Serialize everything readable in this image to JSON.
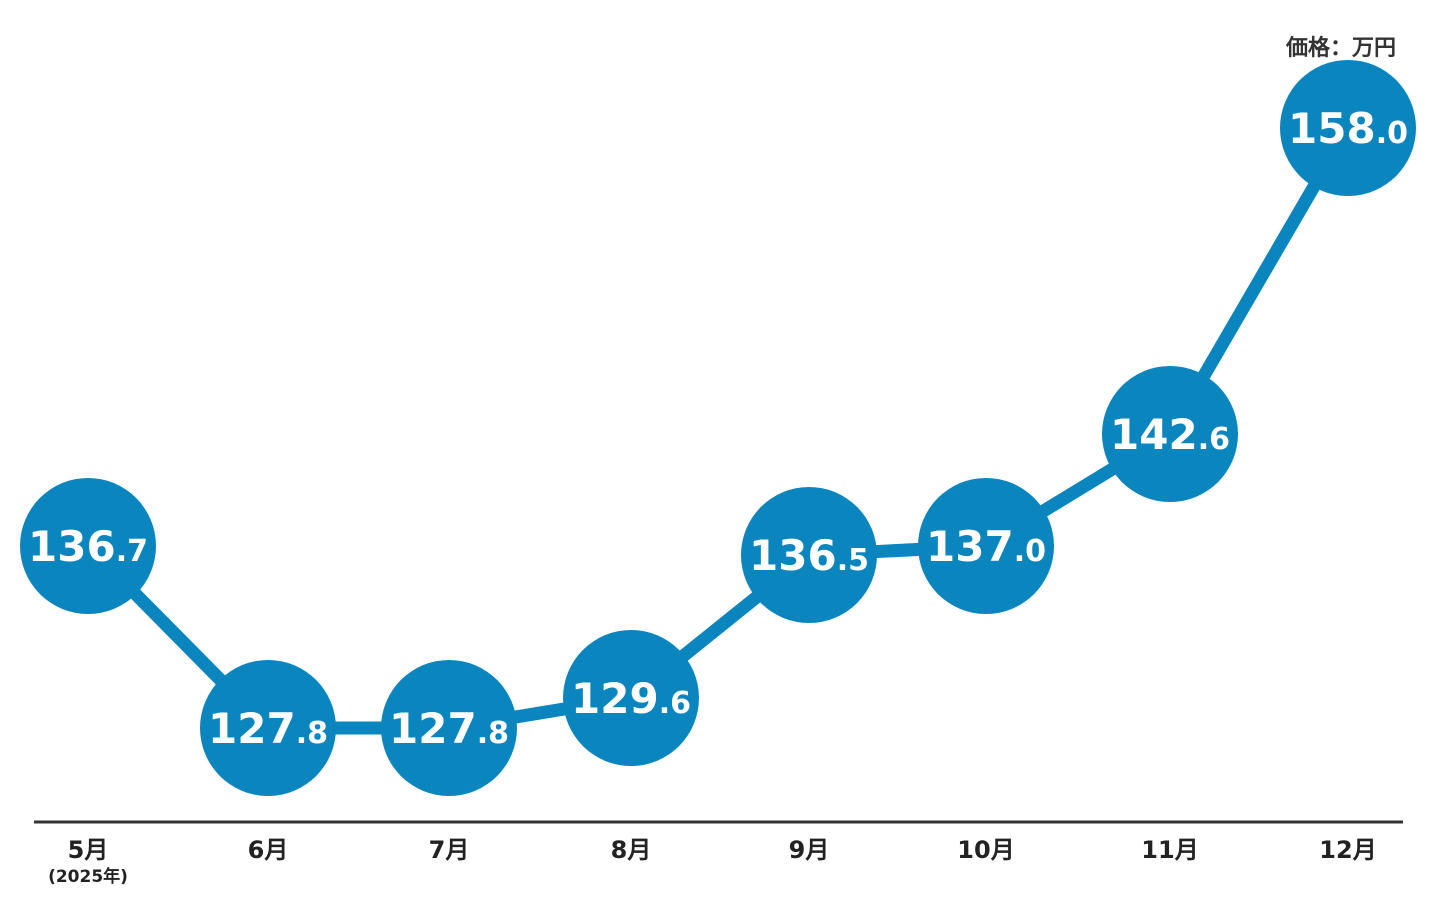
{
  "chart_data": {
    "type": "line",
    "unit_label": "価格：万円",
    "categories": [
      "5月",
      "6月",
      "7月",
      "8月",
      "9月",
      "10月",
      "11月",
      "12月"
    ],
    "first_category_note": "(2025年)",
    "values": [
      136.7,
      127.8,
      127.8,
      129.6,
      136.5,
      137.0,
      142.6,
      158.0
    ],
    "value_labels": [
      {
        "int": "136",
        "dec": ".7"
      },
      {
        "int": "127",
        "dec": ".8"
      },
      {
        "int": "127",
        "dec": ".8"
      },
      {
        "int": "129",
        "dec": ".6"
      },
      {
        "int": "136",
        "dec": ".5"
      },
      {
        "int": "137",
        "dec": ".0"
      },
      {
        "int": "142",
        "dec": ".6"
      },
      {
        "int": "158",
        "dec": ".0"
      }
    ],
    "grid": false,
    "legend": "none",
    "colors": {
      "series": "#0a85be",
      "label_text": "#ffffff",
      "axis": "#333333",
      "tick_text": "#222222"
    }
  }
}
